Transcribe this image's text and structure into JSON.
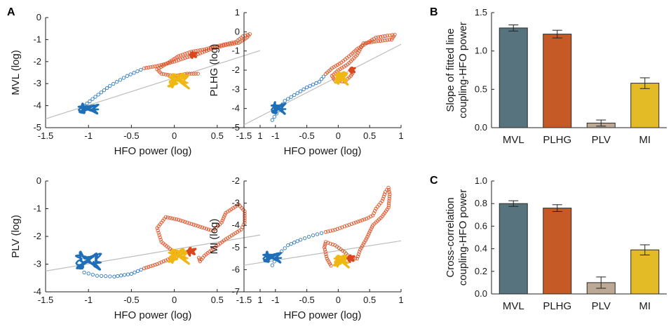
{
  "panel_labels": {
    "a": "A",
    "b": "B",
    "c": "C"
  },
  "colors": {
    "blue": "#2c78bf",
    "blue_fill": "#1f6fb8",
    "orange": "#e0552a",
    "orange_fill": "#d9471f",
    "yellow": "#f2bd16",
    "yellow_fill": "#f0b712",
    "fit_line": "#bdbdbd",
    "bar_mvl": "#57737d",
    "bar_plhg": "#c55a27",
    "bar_plv": "#bca995",
    "bar_mi": "#e3bb27"
  },
  "chart_data": [
    {
      "id": "mvl",
      "type": "scatter",
      "xlabel": "HFO power (log)",
      "ylabel": "MVL (log)",
      "xlim": [
        -1.5,
        1
      ],
      "ylim": [
        -5,
        0
      ],
      "xticks": [
        "-1.5",
        "-1",
        "-0.5",
        "0",
        "0.5",
        "1"
      ],
      "yticks": [
        "-5",
        "-4",
        "-3",
        "-2",
        "-1",
        "0"
      ],
      "fit_line": {
        "x": [
          -1.5,
          1
        ],
        "y": [
          -4.6,
          -1.5
        ]
      },
      "blob_blue": {
        "cx": -1.0,
        "cy": -4.15,
        "rx": 0.13,
        "ry": 0.2
      },
      "blob_yellow": {
        "cx": 0.05,
        "cy": -2.85,
        "rx": 0.13,
        "ry": 0.32
      },
      "blob_orange_start": {
        "cx": 0.22,
        "cy": -1.7,
        "rx": 0.04,
        "ry": 0.1
      },
      "blue_trail": [
        [
          -1.05,
          -4.0
        ],
        [
          -0.92,
          -3.6
        ],
        [
          -0.75,
          -3.1
        ],
        [
          -0.55,
          -2.65
        ],
        [
          -0.35,
          -2.3
        ]
      ],
      "orange_loop": [
        [
          -0.35,
          -2.3
        ],
        [
          -0.2,
          -2.2
        ],
        [
          0.0,
          -2.0
        ],
        [
          0.15,
          -1.8
        ],
        [
          0.25,
          -1.7
        ],
        [
          0.45,
          -1.4
        ],
        [
          0.6,
          -1.25
        ],
        [
          0.75,
          -1.15
        ],
        [
          0.85,
          -0.9
        ],
        [
          0.88,
          -0.75
        ],
        [
          0.8,
          -0.85
        ],
        [
          0.72,
          -1.1
        ],
        [
          0.55,
          -1.25
        ],
        [
          0.35,
          -1.45
        ],
        [
          0.2,
          -1.55
        ],
        [
          0.05,
          -1.75
        ],
        [
          -0.05,
          -2.0
        ],
        [
          -0.2,
          -2.35
        ],
        [
          -0.15,
          -2.55
        ],
        [
          0.0,
          -2.65
        ],
        [
          0.15,
          -2.55
        ],
        [
          0.3,
          -2.55
        ]
      ]
    },
    {
      "id": "plhg",
      "type": "scatter",
      "xlabel": "HFO power (log)",
      "ylabel": "PLHG (log)",
      "xlim": [
        -1.5,
        1
      ],
      "ylim": [
        -5,
        1
      ],
      "xticks": [
        "-1.5",
        "-1",
        "-0.5",
        "0",
        "0.5",
        "1"
      ],
      "yticks": [
        "-5",
        "-4",
        "-3",
        "-2",
        "-1",
        "0",
        "1"
      ],
      "fit_line": {
        "x": [
          -1.5,
          1
        ],
        "y": [
          -4.85,
          -0.65
        ]
      },
      "blob_blue": {
        "cx": -0.95,
        "cy": -4.0,
        "rx": 0.12,
        "ry": 0.28
      },
      "blob_yellow": {
        "cx": 0.05,
        "cy": -2.4,
        "rx": 0.1,
        "ry": 0.3
      },
      "blob_orange_start": {
        "cx": 0.22,
        "cy": -2.0,
        "rx": 0.04,
        "ry": 0.1
      },
      "blue_trail": [
        [
          -1.05,
          -4.6
        ],
        [
          -0.95,
          -4.1
        ],
        [
          -0.85,
          -3.6
        ],
        [
          -0.7,
          -3.3
        ],
        [
          -0.5,
          -2.9
        ],
        [
          -0.3,
          -2.6
        ],
        [
          -0.2,
          -2.2
        ]
      ],
      "orange_loop": [
        [
          -0.2,
          -2.2
        ],
        [
          -0.1,
          -1.9
        ],
        [
          0.05,
          -1.6
        ],
        [
          0.2,
          -1.2
        ],
        [
          0.3,
          -0.9
        ],
        [
          0.45,
          -0.6
        ],
        [
          0.6,
          -0.3
        ],
        [
          0.78,
          -0.2
        ],
        [
          0.9,
          -0.15
        ],
        [
          0.85,
          -0.4
        ],
        [
          0.6,
          -0.5
        ],
        [
          0.4,
          -0.6
        ],
        [
          0.3,
          -1.2
        ],
        [
          0.15,
          -1.7
        ],
        [
          0.0,
          -2.0
        ],
        [
          -0.1,
          -2.3
        ],
        [
          -0.05,
          -2.55
        ],
        [
          0.1,
          -2.6
        ],
        [
          0.2,
          -2.3
        ],
        [
          0.25,
          -2.05
        ]
      ]
    },
    {
      "id": "plv",
      "type": "scatter",
      "xlabel": "HFO power (log)",
      "ylabel": "PLV (log)",
      "xlim": [
        -1.5,
        1
      ],
      "ylim": [
        -4,
        0
      ],
      "xticks": [
        "-1.5",
        "-1",
        "-0.5",
        "0",
        "0.5",
        "1"
      ],
      "yticks": [
        "-4",
        "-3",
        "-2",
        "-1",
        "0"
      ],
      "fit_line": {
        "x": [
          -1.5,
          1
        ],
        "y": [
          -3.25,
          -1.95
        ]
      },
      "blob_blue": {
        "cx": -1.0,
        "cy": -2.9,
        "rx": 0.17,
        "ry": 0.32
      },
      "blob_yellow": {
        "cx": 0.05,
        "cy": -2.7,
        "rx": 0.13,
        "ry": 0.25
      },
      "blob_orange_start": {
        "cx": 0.2,
        "cy": -2.55,
        "rx": 0.05,
        "ry": 0.12
      },
      "blue_trail": [
        [
          -1.05,
          -3.3
        ],
        [
          -0.9,
          -3.42
        ],
        [
          -0.7,
          -3.45
        ],
        [
          -0.5,
          -3.35
        ],
        [
          -0.35,
          -3.15
        ]
      ],
      "orange_loop": [
        [
          -0.35,
          -3.15
        ],
        [
          -0.2,
          -3.0
        ],
        [
          -0.05,
          -2.8
        ],
        [
          0.05,
          -2.7
        ],
        [
          -0.15,
          -2.2
        ],
        [
          -0.2,
          -1.7
        ],
        [
          -0.1,
          -1.3
        ],
        [
          0.05,
          -1.4
        ],
        [
          0.25,
          -1.6
        ],
        [
          0.45,
          -1.8
        ],
        [
          0.55,
          -1.5
        ],
        [
          0.6,
          -1.15
        ],
        [
          0.75,
          -0.85
        ],
        [
          0.82,
          -1.1
        ],
        [
          0.82,
          -1.5
        ],
        [
          0.78,
          -1.75
        ],
        [
          0.6,
          -2.1
        ],
        [
          0.45,
          -2.45
        ],
        [
          0.35,
          -2.7
        ],
        [
          0.3,
          -2.9
        ],
        [
          0.28,
          -2.7
        ]
      ]
    },
    {
      "id": "mi",
      "type": "scatter",
      "xlabel": "HFO power (log)",
      "ylabel": "MI (log)",
      "xlim": [
        -1.5,
        1
      ],
      "ylim": [
        -7,
        -2
      ],
      "xticks": [
        "-1.5",
        "-1",
        "-0.5",
        "0",
        "0.5",
        "1"
      ],
      "yticks": [
        "-7",
        "-6",
        "-5",
        "-4",
        "-3",
        "-2"
      ],
      "fit_line": {
        "x": [
          -1.5,
          1
        ],
        "y": [
          -5.8,
          -4.7
        ]
      },
      "blob_blue": {
        "cx": -1.05,
        "cy": -5.45,
        "rx": 0.16,
        "ry": 0.22
      },
      "blob_yellow": {
        "cx": 0.05,
        "cy": -5.6,
        "rx": 0.12,
        "ry": 0.25
      },
      "blob_orange_start": {
        "cx": 0.2,
        "cy": -5.5,
        "rx": 0.05,
        "ry": 0.12
      },
      "blue_trail": [
        [
          -1.05,
          -5.8
        ],
        [
          -0.95,
          -5.3
        ],
        [
          -0.8,
          -4.9
        ],
        [
          -0.6,
          -4.65
        ],
        [
          -0.4,
          -4.45
        ],
        [
          -0.2,
          -4.3
        ]
      ],
      "orange_loop": [
        [
          -0.2,
          -4.3
        ],
        [
          -0.05,
          -4.2
        ],
        [
          0.1,
          -4.05
        ],
        [
          0.25,
          -3.9
        ],
        [
          0.45,
          -3.7
        ],
        [
          0.55,
          -3.55
        ],
        [
          0.6,
          -3.25
        ],
        [
          0.7,
          -2.9
        ],
        [
          0.75,
          -2.5
        ],
        [
          0.8,
          -2.3
        ],
        [
          0.82,
          -2.6
        ],
        [
          0.8,
          -3.2
        ],
        [
          0.7,
          -3.6
        ],
        [
          0.55,
          -4.0
        ],
        [
          0.45,
          -4.6
        ],
        [
          0.35,
          -5.1
        ],
        [
          0.3,
          -5.5
        ],
        [
          0.2,
          -5.5
        ],
        [
          0.1,
          -5.2
        ],
        [
          -0.05,
          -4.9
        ],
        [
          -0.2,
          -4.75
        ],
        [
          -0.22,
          -5.0
        ],
        [
          -0.18,
          -5.5
        ],
        [
          -0.1,
          -5.9
        ]
      ]
    },
    {
      "id": "slope",
      "type": "bar",
      "ylabel_line1": "Slope of fitted line",
      "ylabel_line2": "coupling-HFO power",
      "categories": [
        "MVL",
        "PLHG",
        "PLV",
        "MI"
      ],
      "values": [
        1.3,
        1.22,
        0.06,
        0.58
      ],
      "errors": [
        0.04,
        0.05,
        0.04,
        0.07
      ],
      "ylim": [
        0,
        1.5
      ],
      "yticks": [
        "0.0",
        "0.5",
        "1.0",
        "1.5"
      ]
    },
    {
      "id": "xcorr",
      "type": "bar",
      "ylabel_line1": "Cross-correlation",
      "ylabel_line2": "coupling-HFO power",
      "categories": [
        "MVL",
        "PLHG",
        "PLV",
        "MI"
      ],
      "values": [
        0.8,
        0.76,
        0.1,
        0.39
      ],
      "errors": [
        0.025,
        0.03,
        0.05,
        0.045
      ],
      "ylim": [
        0,
        1.0
      ],
      "yticks": [
        "0.0",
        "0.2",
        "0.4",
        "0.6",
        "0.8",
        "1.0"
      ]
    }
  ]
}
